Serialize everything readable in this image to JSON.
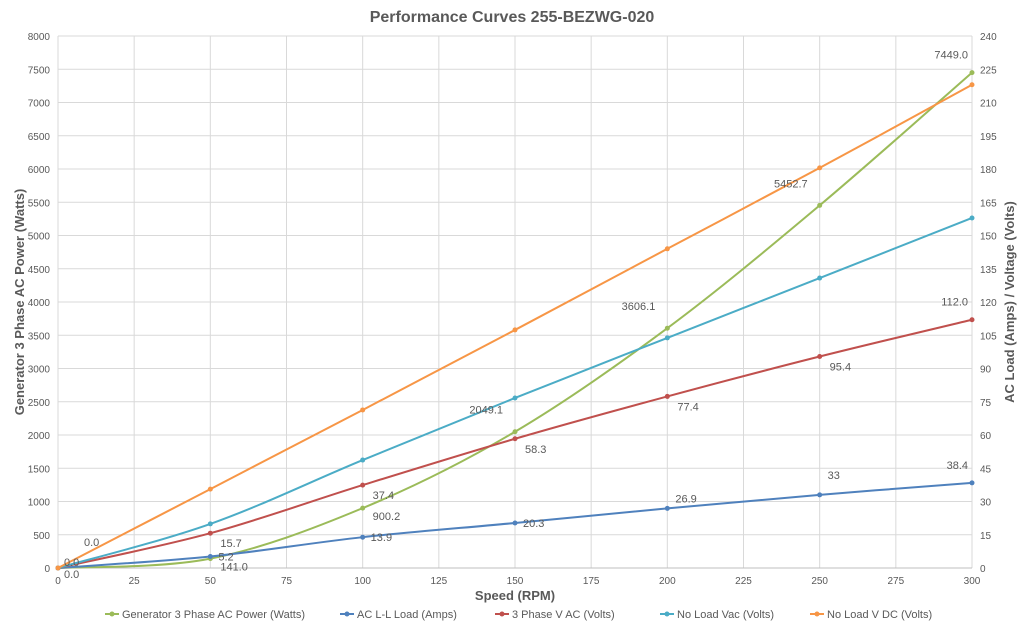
{
  "chart_data": {
    "type": "line",
    "title": "Performance Curves 255-BEZWG-020",
    "xlabel": "Speed (RPM)",
    "ylabel": "Generator 3 Phase AC Power (Watts)",
    "y2label": "AC Load (Amps) / Voltage (Volts)",
    "xlim": [
      0,
      300
    ],
    "ylim": [
      0,
      8000
    ],
    "y2lim": [
      0,
      240
    ],
    "x_ticks": [
      0,
      25,
      50,
      75,
      100,
      125,
      150,
      175,
      200,
      225,
      250,
      275,
      300
    ],
    "y_ticks": [
      0,
      500,
      1000,
      1500,
      2000,
      2500,
      3000,
      3500,
      4000,
      4500,
      5000,
      5500,
      6000,
      6500,
      7000,
      7500,
      8000
    ],
    "y2_ticks": [
      0,
      15,
      30,
      45,
      60,
      75,
      90,
      105,
      120,
      135,
      150,
      165,
      180,
      195,
      210,
      225,
      240
    ],
    "grid": true,
    "legend_position": "bottom",
    "x": [
      0,
      50,
      100,
      150,
      200,
      250,
      300
    ],
    "series": [
      {
        "name": "Generator 3 Phase AC Power (Watts)",
        "axis": "left",
        "color": "#9BBB59",
        "values": [
          0,
          141.0,
          900.2,
          2049.1,
          3606.1,
          5452.7,
          7449.0
        ],
        "labels": [
          "0.0",
          "141.0",
          "900.2",
          "2049.1",
          "3606.1",
          "5452.7",
          "7449.0"
        ]
      },
      {
        "name": "AC L-L Load (Amps)",
        "axis": "right",
        "color": "#4F81BD",
        "values": [
          0,
          5.2,
          13.9,
          20.3,
          26.9,
          33,
          38.4
        ],
        "labels": [
          "0.0",
          "5.2",
          "13.9",
          "20.3",
          "26.9",
          "33",
          "38.4"
        ]
      },
      {
        "name": "3 Phase V AC  (Volts)",
        "axis": "right",
        "color": "#C0504D",
        "values": [
          0,
          15.7,
          37.4,
          58.3,
          77.4,
          95.4,
          112.0
        ],
        "labels": [
          "0.0",
          "15.7",
          "37.4",
          "58.3",
          "77.4",
          "95.4",
          "112.0"
        ]
      },
      {
        "name": "No Load Vac (Volts)",
        "axis": "right",
        "color": "#4BACC6",
        "values": [
          0,
          19.9,
          48.7,
          76.7,
          103.8,
          130.8,
          157.9
        ]
      },
      {
        "name": "No Load V DC (Volts)",
        "axis": "right",
        "color": "#F79646",
        "values": [
          0,
          35.6,
          71.3,
          107.4,
          144.0,
          180.5,
          218.0
        ]
      }
    ]
  }
}
